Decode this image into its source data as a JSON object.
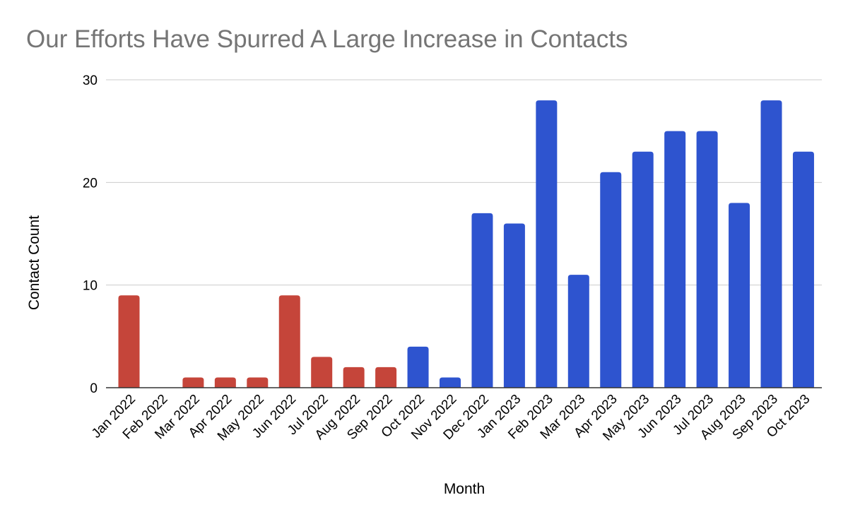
{
  "chart_data": {
    "type": "bar",
    "title": "Our Efforts Have Spurred A Large Increase in Contacts",
    "xlabel": "Month",
    "ylabel": "Contact Count",
    "ylim": [
      0,
      30
    ],
    "yticks": [
      "0",
      "10",
      "20",
      "30"
    ],
    "grid": true,
    "legend": "none",
    "colors": {
      "before": "#c5453a",
      "after": "#2e54cf"
    },
    "categories": [
      "Jan 2022",
      "Feb 2022",
      "Mar 2022",
      "Apr 2022",
      "May 2022",
      "Jun 2022",
      "Jul 2022",
      "Aug 2022",
      "Sep 2022",
      "Oct 2022",
      "Nov 2022",
      "Dec 2022",
      "Jan 2023",
      "Feb 2023",
      "Mar 2023",
      "Apr 2023",
      "May 2023",
      "Jun 2023",
      "Jul 2023",
      "Aug 2023",
      "Sep 2023",
      "Oct 2023"
    ],
    "values": [
      9,
      0,
      1,
      1,
      1,
      9,
      3,
      2,
      2,
      4,
      1,
      17,
      16,
      28,
      11,
      21,
      23,
      25,
      25,
      18,
      28,
      23
    ],
    "bar_color_group": [
      "before",
      "before",
      "before",
      "before",
      "before",
      "before",
      "before",
      "before",
      "before",
      "after",
      "after",
      "after",
      "after",
      "after",
      "after",
      "after",
      "after",
      "after",
      "after",
      "after",
      "after",
      "after"
    ]
  }
}
